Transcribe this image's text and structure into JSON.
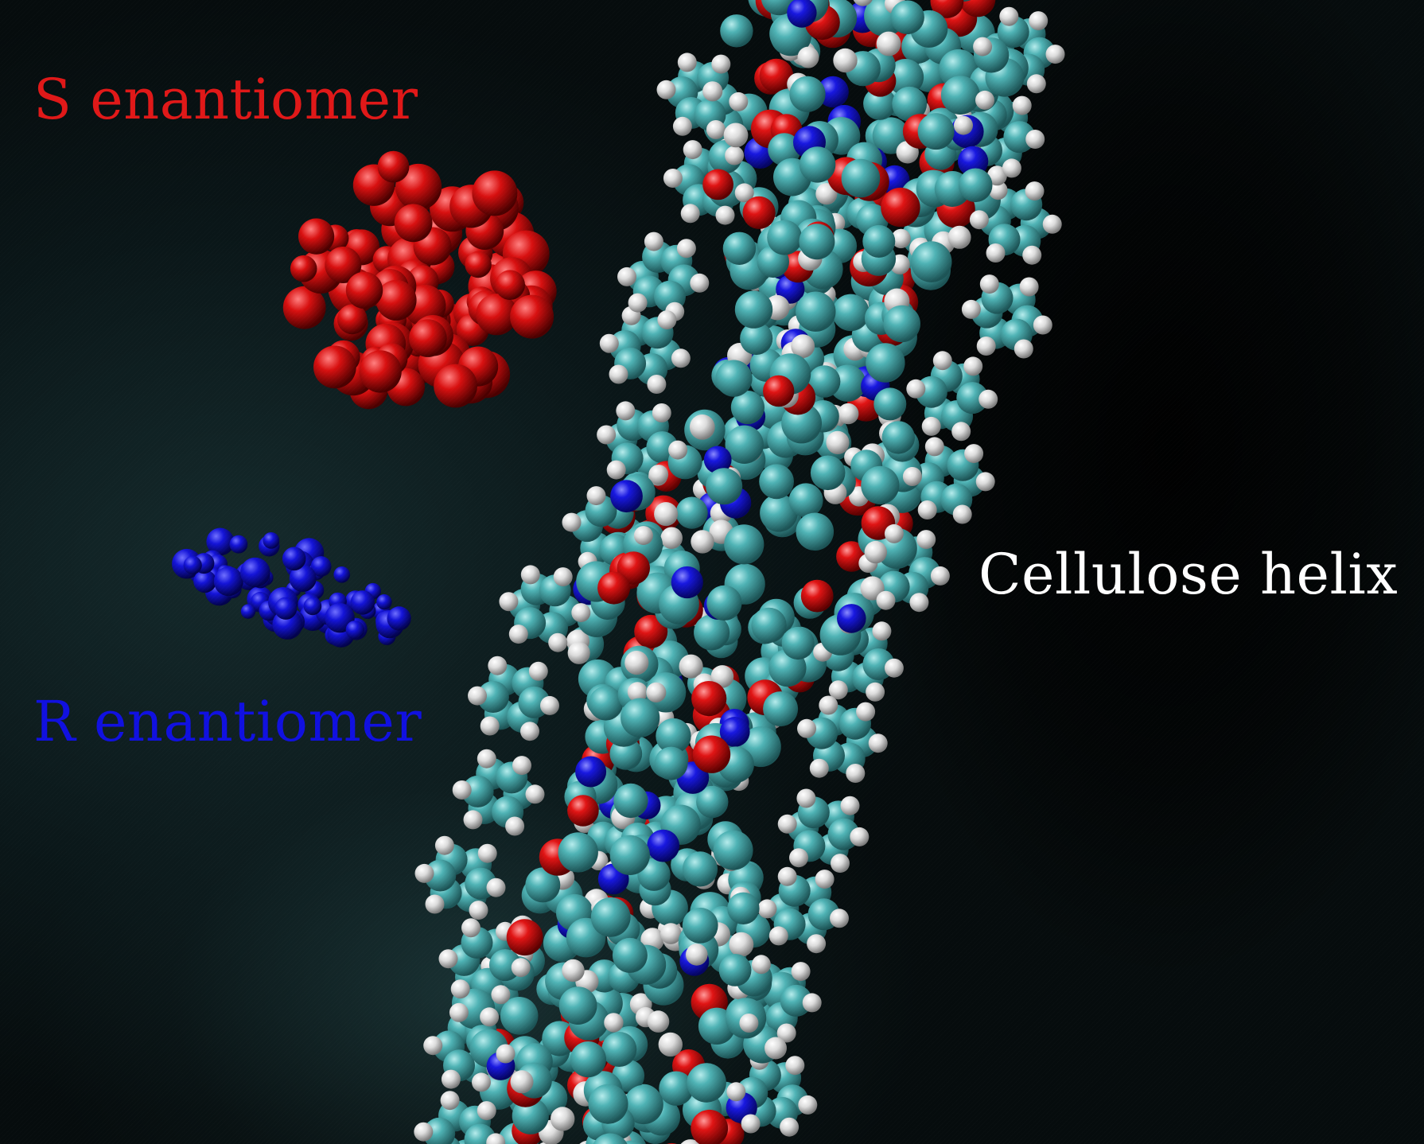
{
  "labels": {
    "s_enantiomer": "S enantiomer",
    "r_enantiomer": "R enantiomer",
    "cellulose_helix": "Cellulose helix"
  },
  "colors": {
    "s_enantiomer": "#e01818",
    "r_enantiomer": "#1010e0",
    "cellulose_helix": "#ffffff",
    "carbon_atom": "#3fa3a6",
    "hydrogen_atom": "#e8e8e8",
    "oxygen_atom": "#d01010",
    "nitrogen_atom": "#1a1ad8",
    "background": "#0a1517"
  }
}
